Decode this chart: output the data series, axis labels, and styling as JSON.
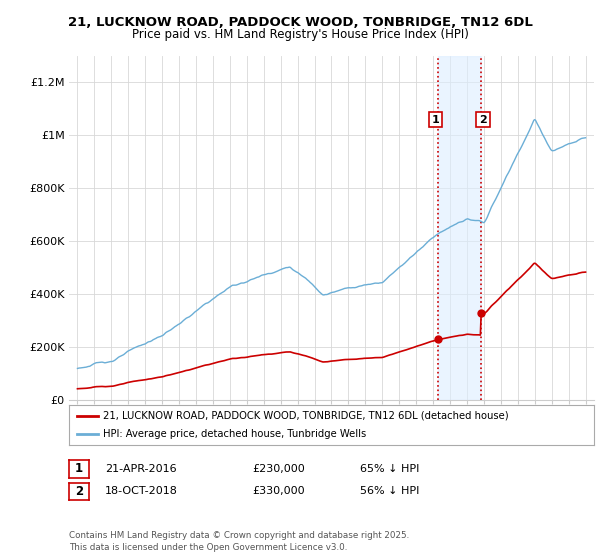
{
  "title_line1": "21, LUCKNOW ROAD, PADDOCK WOOD, TONBRIDGE, TN12 6DL",
  "title_line2": "Price paid vs. HM Land Registry's House Price Index (HPI)",
  "hpi_color": "#6baed6",
  "price_color": "#cc0000",
  "vline_color": "#cc0000",
  "shade_color": "#ddeeff",
  "transaction1_date": 2016.31,
  "transaction1_price": 230000,
  "transaction1_label": "1",
  "transaction2_date": 2018.8,
  "transaction2_price": 330000,
  "transaction2_label": "2",
  "xlim": [
    1994.5,
    2025.5
  ],
  "ylim": [
    0,
    1300000
  ],
  "yticks": [
    0,
    200000,
    400000,
    600000,
    800000,
    1000000,
    1200000
  ],
  "ytick_labels": [
    "£0",
    "£200K",
    "£400K",
    "£600K",
    "£800K",
    "£1M",
    "£1.2M"
  ],
  "xticks": [
    1995,
    1996,
    1997,
    1998,
    1999,
    2000,
    2001,
    2002,
    2003,
    2004,
    2005,
    2006,
    2007,
    2008,
    2009,
    2010,
    2011,
    2012,
    2013,
    2014,
    2015,
    2016,
    2017,
    2018,
    2019,
    2020,
    2021,
    2022,
    2023,
    2024,
    2025
  ],
  "legend_line1": "21, LUCKNOW ROAD, PADDOCK WOOD, TONBRIDGE, TN12 6DL (detached house)",
  "legend_line2": "HPI: Average price, detached house, Tunbridge Wells",
  "table_row1": [
    "1",
    "21-APR-2016",
    "£230,000",
    "65% ↓ HPI"
  ],
  "table_row2": [
    "2",
    "18-OCT-2018",
    "£330,000",
    "56% ↓ HPI"
  ],
  "footer": "Contains HM Land Registry data © Crown copyright and database right 2025.\nThis data is licensed under the Open Government Licence v3.0.",
  "background_color": "#ffffff"
}
